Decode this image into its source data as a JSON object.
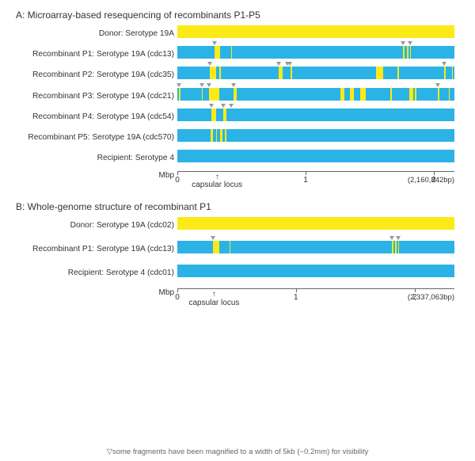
{
  "colors": {
    "donor": "#fcea18",
    "recipient": "#2bb3e6",
    "axis": "#666666",
    "marker": "#999999",
    "background": "#ffffff",
    "text": "#333333"
  },
  "font": {
    "family": "Arial",
    "title_size_pt": 12,
    "label_size_pt": 10
  },
  "panelA": {
    "title": "A: Microarray-based resequencing of recombinants P1-P5",
    "genome_length_bp": 2160842,
    "axis": {
      "unit_label": "Mbp",
      "ticks": [
        0,
        1,
        2
      ],
      "end_label": "(2,160,842bp)",
      "capsular_locus_bp": 310000,
      "capsular_label": "capsular locus"
    },
    "segment_min_width_bp": 5000,
    "tracks": [
      {
        "label": "Donor: Serotype 19A",
        "base": "donor",
        "segments": [],
        "markers": []
      },
      {
        "label": "Recombinant P1: Serotype 19A (cdc13)",
        "base": "recipient",
        "segments": [
          {
            "start": 290000,
            "end": 335000
          },
          {
            "start": 420000,
            "end": 427000
          },
          {
            "start": 1760000,
            "end": 1775000
          },
          {
            "start": 1790000,
            "end": 1805000
          },
          {
            "start": 1815000,
            "end": 1821000
          }
        ],
        "markers": [
          290000,
          1760000,
          1815000
        ]
      },
      {
        "label": "Recombinant P2: Serotype 19A (cdc35)",
        "base": "recipient",
        "segments": [
          {
            "start": 255000,
            "end": 305000
          },
          {
            "start": 325000,
            "end": 340000
          },
          {
            "start": 790000,
            "end": 820000
          },
          {
            "start": 880000,
            "end": 893000
          },
          {
            "start": 1550000,
            "end": 1605000
          },
          {
            "start": 1715000,
            "end": 1727000
          },
          {
            "start": 2080000,
            "end": 2092000
          },
          {
            "start": 2140000,
            "end": 2149000
          }
        ],
        "markers": [
          255000,
          790000,
          858000,
          878000,
          2080000
        ]
      },
      {
        "label": "Recombinant P3: Serotype 19A (cdc21)",
        "base": "recipient",
        "segments": [
          {
            "start": 13000,
            "end": 23000
          },
          {
            "start": 190000,
            "end": 200000
          },
          {
            "start": 250000,
            "end": 330000
          },
          {
            "start": 440000,
            "end": 465000
          },
          {
            "start": 1270000,
            "end": 1303000
          },
          {
            "start": 1348000,
            "end": 1378000
          },
          {
            "start": 1428000,
            "end": 1468000
          },
          {
            "start": 1660000,
            "end": 1674000
          },
          {
            "start": 1810000,
            "end": 1840000
          },
          {
            "start": 1855000,
            "end": 1867000
          },
          {
            "start": 2030000,
            "end": 2046000
          },
          {
            "start": 2116000,
            "end": 2126000
          }
        ],
        "markers": [
          13000,
          190000,
          250000,
          440000,
          2030000
        ]
      },
      {
        "label": "Recombinant P4: Serotype 19A (cdc54)",
        "base": "recipient",
        "segments": [
          {
            "start": 267000,
            "end": 300000
          },
          {
            "start": 355000,
            "end": 380000
          }
        ],
        "markers": [
          267000,
          355000,
          420000
        ]
      },
      {
        "label": "Recombinant P5: Serotype 19A (cdc570)",
        "base": "recipient",
        "segments": [
          {
            "start": 262000,
            "end": 278000
          },
          {
            "start": 300000,
            "end": 310000
          },
          {
            "start": 335000,
            "end": 352000
          },
          {
            "start": 372000,
            "end": 382000
          }
        ],
        "markers": []
      },
      {
        "label": "Recipient: Serotype 4",
        "base": "recipient",
        "segments": [],
        "markers": []
      }
    ]
  },
  "panelB": {
    "title": "B: Whole-genome structure of recombinant P1",
    "genome_length_bp": 2337063,
    "axis": {
      "unit_label": "Mbp",
      "ticks": [
        0,
        1,
        2
      ],
      "end_label": "(2,337,063bp)",
      "capsular_locus_bp": 310000,
      "capsular_label": "capsular locus"
    },
    "segment_min_width_bp": 5000,
    "tracks": [
      {
        "label": "Donor: Serotype 19A (cdc02)",
        "base": "donor",
        "segments": [],
        "markers": []
      },
      {
        "label": "Recombinant P1: Serotype 19A (cdc13)",
        "base": "recipient",
        "segments": [
          {
            "start": 300000,
            "end": 352000
          },
          {
            "start": 440000,
            "end": 450000
          },
          {
            "start": 1810000,
            "end": 1825000
          },
          {
            "start": 1835000,
            "end": 1848000
          },
          {
            "start": 1863000,
            "end": 1872000
          }
        ],
        "markers": [
          300000,
          1810000,
          1860000
        ]
      },
      {
        "label": "Recipient: Serotype 4 (cdc01)",
        "base": "recipient",
        "segments": [],
        "markers": []
      }
    ]
  },
  "footnote": "▽some fragments have been magnified to a width of 5kb (~0.2mm) for visibility",
  "footnote_marker_glyph": "▽"
}
